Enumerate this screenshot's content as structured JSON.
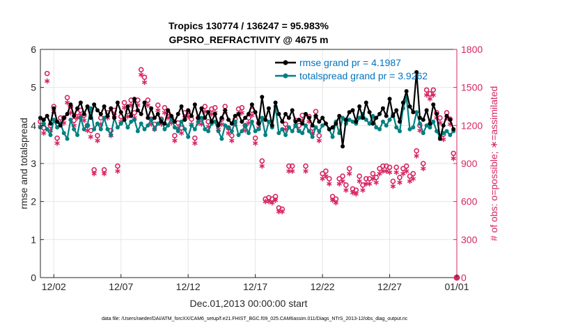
{
  "chart_data": {
    "type": "line",
    "title": "Tropics 130774 / 136247 = 95.983%",
    "subtitle": "GPSRO_REFRACTIVITY @ 4675 m",
    "xlabel": "Dec.01,2013 00:00:00 start",
    "ylabel_left": "rmse and totalspread",
    "ylabel_right": "# of obs: o=possible; ∗=assimilated",
    "footnote": "data file: /Users/raeder/DAI/ATM_forcXX/CAM6_setup/f.e21.FHIST_BGC.f09_025.CAM6assim.011/Diags_NTrS_2013-12/obs_diag_output.nc",
    "xlim": [
      0,
      31
    ],
    "ylim_left": [
      0,
      6
    ],
    "ylim_right": [
      0,
      1800
    ],
    "x_ticks": [
      1.0,
      6.0,
      11.0,
      16.0,
      21.0,
      26.0,
      31.0
    ],
    "x_tick_labels": [
      "12/02",
      "12/07",
      "12/12",
      "12/17",
      "12/22",
      "12/27",
      "01/01"
    ],
    "y_ticks_left": [
      0,
      1,
      2,
      3,
      4,
      5,
      6
    ],
    "y_ticks_right": [
      0,
      300,
      600,
      900,
      1200,
      1500,
      1800
    ],
    "colors": {
      "rmse": "#000000",
      "spread": "#008080",
      "obs": "#D62563"
    },
    "series": [
      {
        "name": "rmse grand pr = 4.1987",
        "axis": "left",
        "x": [
          0.0,
          0.25,
          0.5,
          0.75,
          1.0,
          1.25,
          1.5,
          1.75,
          2.0,
          2.25,
          2.5,
          2.75,
          3.0,
          3.25,
          3.5,
          3.75,
          4.0,
          4.25,
          4.5,
          4.75,
          5.0,
          5.25,
          5.5,
          5.75,
          6.0,
          6.25,
          6.5,
          6.75,
          7.0,
          7.25,
          7.5,
          7.75,
          8.0,
          8.25,
          8.5,
          8.75,
          9.0,
          9.25,
          9.5,
          9.75,
          10.0,
          10.25,
          10.5,
          10.75,
          11.0,
          11.25,
          11.5,
          11.75,
          12.0,
          12.25,
          12.5,
          12.75,
          13.0,
          13.25,
          13.5,
          13.75,
          14.0,
          14.25,
          14.5,
          14.75,
          15.0,
          15.25,
          15.5,
          15.75,
          16.0,
          16.25,
          16.5,
          16.75,
          17.0,
          17.25,
          17.5,
          17.75,
          18.0,
          18.25,
          18.5,
          18.75,
          19.0,
          19.25,
          19.5,
          19.75,
          20.0,
          20.25,
          20.5,
          20.75,
          21.0,
          21.25,
          21.5,
          21.75,
          22.0,
          22.25,
          22.5,
          22.75,
          23.0,
          23.25,
          23.5,
          23.75,
          24.0,
          24.25,
          24.5,
          24.75,
          25.0,
          25.25,
          25.5,
          25.75,
          26.0,
          26.25,
          26.5,
          26.75,
          27.0,
          27.25,
          27.5,
          27.75,
          28.0,
          28.25,
          28.5,
          28.75,
          29.0,
          29.25,
          29.5,
          29.75,
          30.0,
          30.25,
          30.5,
          30.75
        ],
        "values": [
          4.2,
          4.15,
          4.25,
          4.05,
          4.45,
          4.1,
          4.0,
          4.2,
          4.3,
          4.55,
          4.25,
          4.45,
          4.6,
          4.3,
          4.5,
          4.2,
          4.55,
          4.4,
          4.3,
          4.5,
          4.25,
          4.45,
          4.2,
          4.6,
          4.35,
          4.15,
          4.5,
          4.25,
          4.7,
          4.4,
          4.3,
          4.6,
          4.2,
          4.45,
          4.2,
          4.3,
          4.1,
          4.05,
          4.4,
          4.25,
          4.1,
          4.3,
          4.5,
          4.15,
          4.4,
          4.25,
          4.55,
          4.2,
          4.45,
          4.2,
          4.35,
          4.1,
          4.3,
          4.0,
          4.2,
          4.4,
          4.15,
          4.05,
          4.25,
          4.3,
          4.1,
          4.2,
          4.3,
          4.55,
          4.35,
          4.05,
          4.75,
          4.15,
          4.45,
          4.0,
          4.6,
          4.3,
          4.1,
          4.3,
          4.2,
          4.4,
          4.1,
          4.15,
          4.05,
          4.3,
          4.2,
          4.0,
          4.25,
          4.1,
          4.2,
          4.05,
          3.9,
          3.95,
          4.05,
          4.25,
          3.45,
          4.15,
          4.35,
          4.4,
          4.1,
          4.5,
          4.2,
          4.6,
          4.35,
          4.05,
          4.2,
          4.3,
          4.45,
          4.25,
          4.7,
          4.25,
          4.4,
          4.1,
          4.6,
          4.9,
          4.5,
          4.35,
          5.4,
          4.2,
          4.15,
          4.4,
          4.05,
          4.55,
          4.3,
          3.65,
          4.0,
          4.25,
          4.15,
          3.9
        ]
      },
      {
        "name": "totalspread grand pr = 3.9262",
        "axis": "left",
        "x": [
          0.0,
          0.25,
          0.5,
          0.75,
          1.0,
          1.25,
          1.5,
          1.75,
          2.0,
          2.25,
          2.5,
          2.75,
          3.0,
          3.25,
          3.5,
          3.75,
          4.0,
          4.25,
          4.5,
          4.75,
          5.0,
          5.25,
          5.5,
          5.75,
          6.0,
          6.25,
          6.5,
          6.75,
          7.0,
          7.25,
          7.5,
          7.75,
          8.0,
          8.25,
          8.5,
          8.75,
          9.0,
          9.25,
          9.5,
          9.75,
          10.0,
          10.25,
          10.5,
          10.75,
          11.0,
          11.25,
          11.5,
          11.75,
          12.0,
          12.25,
          12.5,
          12.75,
          13.0,
          13.25,
          13.5,
          13.75,
          14.0,
          14.25,
          14.5,
          14.75,
          15.0,
          15.25,
          15.5,
          15.75,
          16.0,
          16.25,
          16.5,
          16.75,
          17.0,
          17.25,
          17.5,
          17.75,
          18.0,
          18.25,
          18.5,
          18.75,
          19.0,
          19.25,
          19.5,
          19.75,
          20.0,
          20.25,
          20.5,
          20.75,
          21.0,
          21.25,
          21.5,
          21.75,
          22.0,
          22.25,
          22.5,
          22.75,
          23.0,
          23.25,
          23.5,
          23.75,
          24.0,
          24.25,
          24.5,
          24.75,
          25.0,
          25.25,
          25.5,
          25.75,
          26.0,
          26.25,
          26.5,
          26.75,
          27.0,
          27.25,
          27.5,
          27.75,
          28.0,
          28.25,
          28.5,
          28.75,
          29.0,
          29.25,
          29.5,
          29.75,
          30.0,
          30.25,
          30.5,
          30.75
        ],
        "values": [
          3.95,
          4.05,
          3.9,
          3.75,
          4.15,
          3.95,
          4.05,
          3.8,
          3.65,
          4.15,
          3.9,
          3.75,
          4.2,
          3.9,
          4.0,
          4.45,
          3.9,
          4.05,
          3.9,
          4.2,
          3.9,
          3.75,
          4.2,
          3.95,
          4.05,
          4.15,
          3.95,
          4.1,
          4.15,
          3.85,
          4.05,
          3.9,
          4.0,
          4.15,
          3.9,
          4.05,
          4.15,
          3.9,
          4.0,
          4.2,
          3.95,
          3.85,
          4.1,
          3.9,
          3.7,
          4.0,
          3.9,
          4.1,
          4.2,
          3.9,
          3.85,
          4.05,
          4.1,
          3.85,
          3.65,
          4.0,
          3.95,
          3.85,
          4.1,
          3.75,
          3.85,
          4.0,
          3.8,
          4.1,
          3.85,
          3.9,
          4.2,
          3.75,
          4.1,
          3.95,
          4.5,
          3.8,
          3.9,
          3.75,
          3.95,
          3.85,
          4.0,
          3.85,
          3.8,
          4.0,
          3.85,
          3.7,
          3.95,
          3.85,
          4.0,
          4.05,
          3.9,
          3.7,
          4.1,
          3.8,
          4.2,
          4.05,
          4.15,
          4.1,
          4.05,
          4.2,
          4.3,
          4.15,
          4.05,
          4.25,
          3.95,
          3.9,
          4.1,
          4.0,
          4.15,
          4.3,
          3.95,
          3.85,
          4.45,
          4.75,
          3.9,
          3.95,
          4.35,
          4.05,
          3.8,
          4.0,
          3.95,
          4.1,
          3.85,
          3.7,
          3.8,
          3.85,
          3.75,
          3.85
        ]
      },
      {
        "name": "obs possible (o)",
        "axis": "right",
        "marker": "circle",
        "x": [
          0.0,
          0.25,
          0.5,
          0.75,
          1.0,
          1.25,
          1.5,
          1.75,
          2.0,
          2.25,
          2.5,
          2.75,
          3.0,
          3.25,
          3.5,
          3.75,
          4.0,
          4.25,
          4.5,
          4.75,
          5.0,
          5.25,
          5.5,
          5.75,
          6.0,
          6.25,
          6.5,
          6.75,
          7.0,
          7.25,
          7.5,
          7.75,
          8.0,
          8.25,
          8.5,
          8.75,
          9.0,
          9.25,
          9.5,
          9.75,
          10.0,
          10.25,
          10.5,
          10.75,
          11.0,
          11.25,
          11.5,
          11.75,
          12.0,
          12.25,
          12.5,
          12.75,
          13.0,
          13.25,
          13.5,
          13.75,
          14.0,
          14.25,
          14.5,
          14.75,
          15.0,
          15.25,
          15.5,
          15.75,
          16.0,
          16.25,
          16.5,
          16.75,
          17.0,
          17.25,
          17.5,
          17.75,
          18.0,
          18.25,
          18.5,
          18.75,
          19.0,
          19.25,
          19.5,
          19.75,
          20.0,
          20.25,
          20.5,
          20.75,
          21.0,
          21.25,
          21.5,
          21.75,
          22.0,
          22.25,
          22.5,
          22.75,
          23.0,
          23.25,
          23.5,
          23.75,
          24.0,
          24.25,
          24.5,
          24.75,
          25.0,
          25.25,
          25.5,
          25.75,
          26.0,
          26.25,
          26.5,
          26.75,
          27.0,
          27.25,
          27.5,
          27.75,
          28.0,
          28.25,
          28.5,
          28.75,
          29.0,
          29.25,
          29.5,
          29.75,
          30.0,
          30.25,
          30.5,
          30.75,
          31.0
        ],
        "values": [
          1230,
          1180,
          1610,
          1200,
          1350,
          1100,
          1260,
          1260,
          1420,
          1350,
          1240,
          1300,
          1320,
          1280,
          1200,
          1160,
          850,
          1120,
          1260,
          850,
          1300,
          1160,
          1320,
          880,
          1270,
          1380,
          1310,
          1400,
          1300,
          1400,
          1640,
          1580,
          1400,
          1250,
          1210,
          1360,
          1250,
          1340,
          1300,
          1260,
          1120,
          1220,
          1180,
          1300,
          1310,
          1250,
          1100,
          1260,
          1250,
          1350,
          1230,
          1330,
          1340,
          1210,
          1250,
          1350,
          1180,
          1120,
          1250,
          1330,
          1340,
          1200,
          1260,
          1320,
          1100,
          1220,
          920,
          620,
          630,
          620,
          640,
          550,
          540,
          1210,
          880,
          880,
          1240,
          1200,
          1280,
          880,
          1270,
          1180,
          1310,
          1120,
          820,
          840,
          780,
          640,
          620,
          780,
          800,
          730,
          860,
          700,
          690,
          800,
          730,
          780,
          780,
          820,
          790,
          860,
          880,
          880,
          870,
          760,
          870,
          790,
          860,
          880,
          800,
          820,
          1000,
          1200,
          900,
          1480,
          1450,
          1480,
          1300,
          1260,
          1130,
          1300,
          1250,
          980,
          0
        ]
      },
      {
        "name": "obs assimilated (∗)",
        "axis": "right",
        "marker": "asterisk",
        "x": [
          0.0,
          0.25,
          0.5,
          0.75,
          1.0,
          1.25,
          1.5,
          1.75,
          2.0,
          2.25,
          2.5,
          2.75,
          3.0,
          3.25,
          3.5,
          3.75,
          4.0,
          4.25,
          4.5,
          4.75,
          5.0,
          5.25,
          5.5,
          5.75,
          6.0,
          6.25,
          6.5,
          6.75,
          7.0,
          7.25,
          7.5,
          7.75,
          8.0,
          8.25,
          8.5,
          8.75,
          9.0,
          9.25,
          9.5,
          9.75,
          10.0,
          10.25,
          10.5,
          10.75,
          11.0,
          11.25,
          11.5,
          11.75,
          12.0,
          12.25,
          12.5,
          12.75,
          13.0,
          13.25,
          13.5,
          13.75,
          14.0,
          14.25,
          14.5,
          14.75,
          15.0,
          15.25,
          15.5,
          15.75,
          16.0,
          16.25,
          16.5,
          16.75,
          17.0,
          17.25,
          17.5,
          17.75,
          18.0,
          18.25,
          18.5,
          18.75,
          19.0,
          19.25,
          19.5,
          19.75,
          20.0,
          20.25,
          20.5,
          20.75,
          21.0,
          21.25,
          21.5,
          21.75,
          22.0,
          22.25,
          22.5,
          22.75,
          23.0,
          23.25,
          23.5,
          23.75,
          24.0,
          24.25,
          24.5,
          24.75,
          25.0,
          25.25,
          25.5,
          25.75,
          26.0,
          26.25,
          26.5,
          26.75,
          27.0,
          27.25,
          27.5,
          27.75,
          28.0,
          28.25,
          28.5,
          28.75,
          29.0,
          29.25,
          29.5,
          29.75,
          30.0,
          30.25,
          30.5,
          30.75,
          31.0
        ],
        "values": [
          1190,
          1140,
          1550,
          1160,
          1310,
          1060,
          1220,
          1220,
          1380,
          1300,
          1200,
          1260,
          1280,
          1240,
          1160,
          1110,
          820,
          1080,
          1210,
          820,
          1260,
          1120,
          1280,
          840,
          1230,
          1340,
          1270,
          1360,
          1260,
          1360,
          1600,
          1540,
          1360,
          1210,
          1170,
          1320,
          1210,
          1300,
          1260,
          1220,
          1080,
          1180,
          1140,
          1260,
          1270,
          1210,
          1060,
          1220,
          1210,
          1310,
          1190,
          1290,
          1300,
          1170,
          1210,
          1310,
          1140,
          1080,
          1210,
          1290,
          1300,
          1160,
          1220,
          1280,
          1060,
          1180,
          880,
          600,
          600,
          590,
          610,
          520,
          520,
          1170,
          840,
          840,
          1200,
          1160,
          1240,
          840,
          1230,
          1140,
          1270,
          1080,
          780,
          800,
          740,
          610,
          590,
          740,
          760,
          690,
          820,
          670,
          660,
          760,
          690,
          740,
          740,
          780,
          750,
          820,
          840,
          840,
          830,
          720,
          830,
          750,
          820,
          840,
          760,
          780,
          960,
          1160,
          860,
          1440,
          1410,
          1440,
          1260,
          1220,
          1090,
          1260,
          1210,
          940,
          0
        ]
      }
    ],
    "legend": {
      "placement": "top-right"
    }
  }
}
